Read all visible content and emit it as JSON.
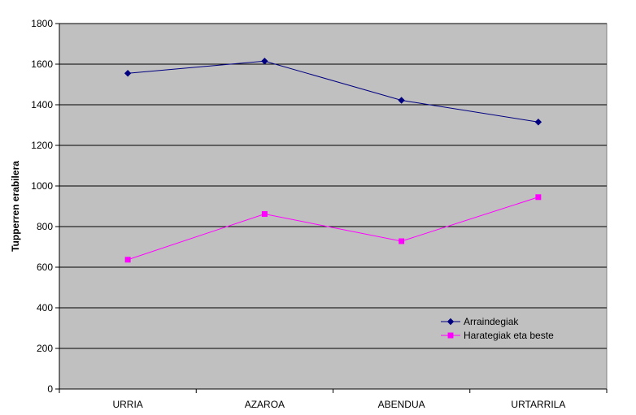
{
  "chart_data": {
    "type": "line",
    "categories": [
      "URRIA",
      "AZAROA",
      "ABENDUA",
      "URTARRILA"
    ],
    "series": [
      {
        "name": "Arraindegiak",
        "values": [
          1555,
          1615,
          1422,
          1315
        ],
        "color": "#000080",
        "marker": "diamond"
      },
      {
        "name": "Harategiak eta beste",
        "values": [
          637,
          862,
          728,
          945
        ],
        "color": "#ff00ff",
        "marker": "square"
      }
    ],
    "ylabel": "Tupperren erabilera",
    "xlabel": "",
    "ylim": [
      0,
      1800
    ],
    "yticks": [
      0,
      200,
      400,
      600,
      800,
      1000,
      1200,
      1400,
      1600,
      1800
    ],
    "grid": true,
    "plot_background": "#c0c0c0",
    "legend_position": "bottom-right"
  }
}
